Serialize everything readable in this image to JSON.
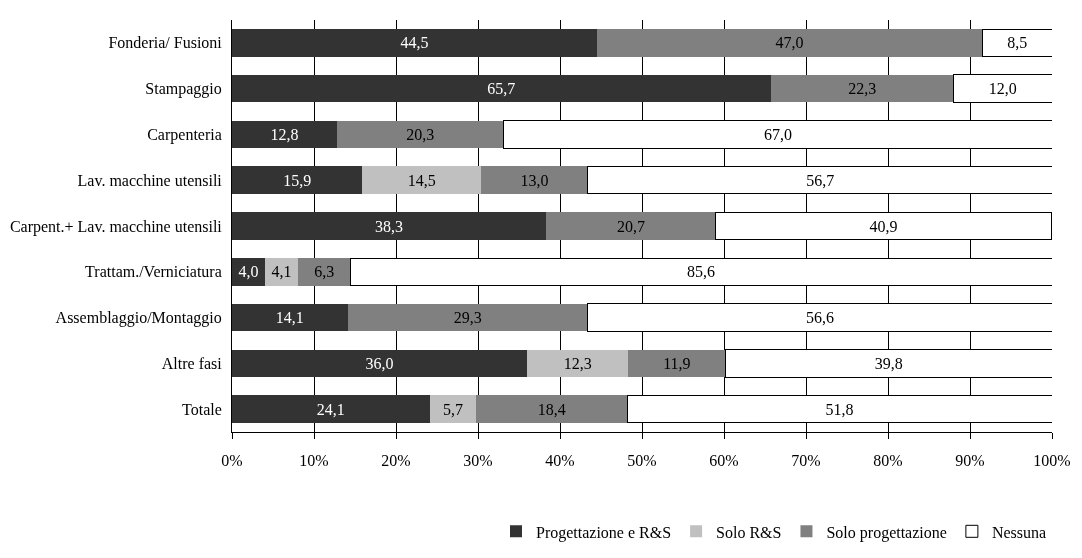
{
  "chart_data": {
    "type": "bar",
    "orientation": "horizontal",
    "stacked": true,
    "categories": [
      "Fonderia/ Fusioni",
      "Stampaggio",
      "Carpenteria",
      "Lav. macchine utensili",
      "Carpent.+ Lav. macchine utensili",
      "Trattam./Verniciatura",
      "Assemblaggio/Montaggio",
      "Altre fasi",
      "Totale"
    ],
    "series": [
      {
        "name": "Progettazione e R&S",
        "color": "#333333",
        "values": [
          44.5,
          65.7,
          12.8,
          15.9,
          38.3,
          4.0,
          14.1,
          36.0,
          24.1
        ],
        "value_labels": [
          "44,5",
          "65,7",
          "12,8",
          "15,9",
          "38,3",
          "4,0",
          "14,1",
          "36,0",
          "24,1"
        ]
      },
      {
        "name": "Solo R&S",
        "color": "#c0c0c0",
        "values": [
          null,
          null,
          null,
          14.5,
          null,
          4.1,
          null,
          12.3,
          5.7
        ],
        "value_labels": [
          null,
          null,
          null,
          "14,5",
          null,
          "4,1",
          null,
          "12,3",
          "5,7"
        ]
      },
      {
        "name": "Solo progettazione",
        "color": "#808080",
        "values": [
          47.0,
          22.3,
          20.3,
          13.0,
          20.7,
          6.3,
          29.3,
          11.9,
          18.4
        ],
        "value_labels": [
          "47,0",
          "22,3",
          "20,3",
          "13,0",
          "20,7",
          "6,3",
          "29,3",
          "11,9",
          "18,4"
        ]
      },
      {
        "name": "Nessuna",
        "color": "#ffffff",
        "values": [
          8.5,
          12.0,
          67.0,
          56.7,
          40.9,
          85.6,
          56.6,
          39.8,
          51.8
        ],
        "value_labels": [
          "8,5",
          "12,0",
          "67,0",
          "56,7",
          "40,9",
          "85,6",
          "56,6",
          "39,8",
          "51,8"
        ]
      }
    ],
    "xlim": [
      0,
      100
    ],
    "xticks": [
      {
        "value": 0,
        "label": "0%"
      },
      {
        "value": 10,
        "label": "10%"
      },
      {
        "value": 20,
        "label": "20%"
      },
      {
        "value": 30,
        "label": "30%"
      },
      {
        "value": 40,
        "label": "40%"
      },
      {
        "value": 50,
        "label": "50%"
      },
      {
        "value": 60,
        "label": "60%"
      },
      {
        "value": 70,
        "label": "70%"
      },
      {
        "value": 80,
        "label": "80%"
      },
      {
        "value": 90,
        "label": "90%"
      },
      {
        "value": 100,
        "label": "100%"
      }
    ],
    "grid": "x",
    "legend": "bottom"
  }
}
